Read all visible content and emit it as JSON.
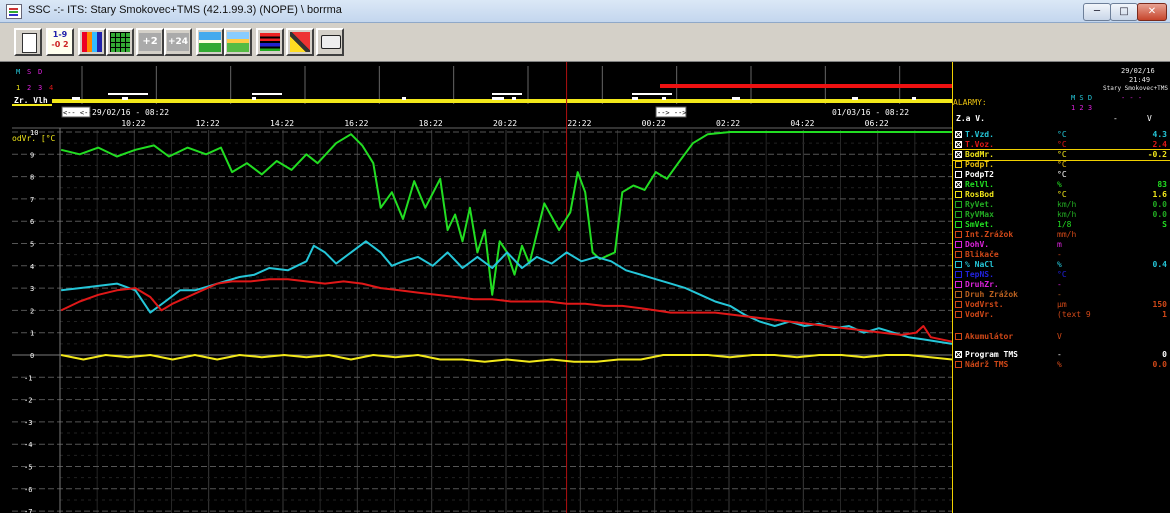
{
  "window": {
    "title": "SSC -:- ITS: Stary Smokovec+TMS (42.1.99.3) (NOPE) \\ borrma",
    "min_glyph": "─",
    "max_glyph": "□",
    "close_glyph": "✕"
  },
  "toolbar": {
    "buttons": [
      {
        "name": "new-page-icon",
        "label": ""
      },
      {
        "name": "values-icon",
        "label": "1-9\n-0 2"
      },
      {
        "name": "colors-icon",
        "label": ""
      },
      {
        "name": "grid-icon",
        "label": ""
      },
      {
        "name": "plus2-icon",
        "label": "+2"
      },
      {
        "name": "plus24-icon",
        "label": "+24"
      },
      {
        "name": "landscape-icon",
        "label": ""
      },
      {
        "name": "landscape2-icon",
        "label": ""
      },
      {
        "name": "bars-icon",
        "label": ""
      },
      {
        "name": "tools-icon",
        "label": ""
      },
      {
        "name": "print-icon",
        "label": ""
      }
    ]
  },
  "top_strip": {
    "msd_letters": [
      "M",
      "S",
      "D"
    ],
    "digits": [
      "1",
      "2",
      "3",
      "4"
    ],
    "row_label": "Zr. Vlh",
    "nav_left": "<-- <--",
    "nav_right": "--> -->",
    "start_time": "29/02/16 - 08:22",
    "end_time": "01/03/16 - 08:22"
  },
  "chart_data": {
    "type": "line",
    "ylabel": "[°C",
    "ylabel_prefix": "odVr.",
    "ylim": [
      -7,
      10
    ],
    "yticks": [
      10,
      9,
      8,
      7,
      6,
      5,
      4,
      3,
      2,
      1,
      0,
      -1,
      -2,
      -3,
      -4,
      -5,
      -6,
      -7
    ],
    "xlim": [
      8.37,
      32.37
    ],
    "xtick_hours": [
      10.37,
      12.37,
      14.37,
      16.37,
      18.37,
      20.37,
      22.37,
      24.37,
      26.37,
      28.37,
      30.37
    ],
    "xtick_labels": [
      "10:22",
      "12:22",
      "14:22",
      "16:22",
      "18:22",
      "20:22",
      "22:22",
      "00:22",
      "02:22",
      "04:22",
      "06:22"
    ],
    "cursor_x": 22.0,
    "grid": true,
    "series": [
      {
        "color": "#22dd22",
        "points": [
          [
            8.4,
            9.2
          ],
          [
            8.9,
            9.0
          ],
          [
            9.4,
            9.3
          ],
          [
            9.9,
            8.9
          ],
          [
            10.4,
            9.2
          ],
          [
            10.9,
            9.4
          ],
          [
            11.3,
            8.9
          ],
          [
            11.8,
            9.3
          ],
          [
            12.3,
            9.0
          ],
          [
            12.7,
            9.3
          ],
          [
            13.0,
            8.2
          ],
          [
            13.4,
            8.6
          ],
          [
            13.8,
            8.1
          ],
          [
            14.2,
            8.7
          ],
          [
            14.6,
            8.3
          ],
          [
            15.0,
            9.0
          ],
          [
            15.3,
            8.6
          ],
          [
            15.8,
            9.5
          ],
          [
            16.2,
            9.9
          ],
          [
            16.5,
            9.4
          ],
          [
            16.8,
            8.6
          ],
          [
            17.0,
            6.6
          ],
          [
            17.3,
            7.3
          ],
          [
            17.6,
            6.1
          ],
          [
            17.9,
            7.8
          ],
          [
            18.2,
            6.6
          ],
          [
            18.6,
            7.9
          ],
          [
            18.8,
            5.6
          ],
          [
            19.0,
            6.3
          ],
          [
            19.2,
            5.1
          ],
          [
            19.4,
            6.6
          ],
          [
            19.6,
            4.6
          ],
          [
            19.8,
            5.6
          ],
          [
            20.0,
            2.7
          ],
          [
            20.2,
            5.1
          ],
          [
            20.4,
            4.6
          ],
          [
            20.6,
            3.6
          ],
          [
            20.8,
            4.9
          ],
          [
            21.0,
            4.1
          ],
          [
            21.4,
            6.8
          ],
          [
            21.8,
            5.6
          ],
          [
            22.1,
            6.4
          ],
          [
            22.3,
            8.2
          ],
          [
            22.5,
            7.3
          ],
          [
            22.7,
            4.6
          ],
          [
            22.9,
            4.3
          ],
          [
            23.3,
            4.6
          ],
          [
            23.5,
            7.3
          ],
          [
            23.8,
            7.6
          ],
          [
            24.1,
            7.4
          ],
          [
            24.4,
            8.2
          ],
          [
            24.7,
            7.9
          ],
          [
            25.0,
            8.6
          ],
          [
            25.4,
            9.5
          ],
          [
            25.8,
            9.9
          ],
          [
            26.4,
            10.0
          ],
          [
            32.37,
            10.0
          ]
        ]
      },
      {
        "color": "#25c6d8",
        "points": [
          [
            8.4,
            2.9
          ],
          [
            8.9,
            3.0
          ],
          [
            9.4,
            3.1
          ],
          [
            9.9,
            3.2
          ],
          [
            10.4,
            2.9
          ],
          [
            10.8,
            1.9
          ],
          [
            11.2,
            2.4
          ],
          [
            11.6,
            2.9
          ],
          [
            12.0,
            2.9
          ],
          [
            12.4,
            3.1
          ],
          [
            12.8,
            3.3
          ],
          [
            13.2,
            3.5
          ],
          [
            13.6,
            3.6
          ],
          [
            14.0,
            3.9
          ],
          [
            14.5,
            3.8
          ],
          [
            15.0,
            4.2
          ],
          [
            15.2,
            4.9
          ],
          [
            15.5,
            4.6
          ],
          [
            15.8,
            4.1
          ],
          [
            16.2,
            4.6
          ],
          [
            16.6,
            5.1
          ],
          [
            17.0,
            4.6
          ],
          [
            17.3,
            4.0
          ],
          [
            17.6,
            4.2
          ],
          [
            18.0,
            4.4
          ],
          [
            18.4,
            4.0
          ],
          [
            18.8,
            4.6
          ],
          [
            19.2,
            3.9
          ],
          [
            19.6,
            4.4
          ],
          [
            20.0,
            3.9
          ],
          [
            20.4,
            4.6
          ],
          [
            20.8,
            3.9
          ],
          [
            21.2,
            4.4
          ],
          [
            21.6,
            4.1
          ],
          [
            22.0,
            4.6
          ],
          [
            22.4,
            4.2
          ],
          [
            22.8,
            4.4
          ],
          [
            23.2,
            4.2
          ],
          [
            23.6,
            3.8
          ],
          [
            24.0,
            3.6
          ],
          [
            24.4,
            3.4
          ],
          [
            24.8,
            3.2
          ],
          [
            25.2,
            3.0
          ],
          [
            25.6,
            2.7
          ],
          [
            26.0,
            2.4
          ],
          [
            26.4,
            2.2
          ],
          [
            26.8,
            1.8
          ],
          [
            27.2,
            1.5
          ],
          [
            27.6,
            1.3
          ],
          [
            28.0,
            1.5
          ],
          [
            28.4,
            1.3
          ],
          [
            28.8,
            1.4
          ],
          [
            29.2,
            1.2
          ],
          [
            29.6,
            1.3
          ],
          [
            30.0,
            1.0
          ],
          [
            30.4,
            1.2
          ],
          [
            30.8,
            1.0
          ],
          [
            31.2,
            0.8
          ],
          [
            31.6,
            0.7
          ],
          [
            32.37,
            0.5
          ]
        ]
      },
      {
        "color": "#e01818",
        "points": [
          [
            8.4,
            2.0
          ],
          [
            8.9,
            2.4
          ],
          [
            9.4,
            2.7
          ],
          [
            9.9,
            2.9
          ],
          [
            10.4,
            3.0
          ],
          [
            10.8,
            2.6
          ],
          [
            11.1,
            2.0
          ],
          [
            11.4,
            2.3
          ],
          [
            11.8,
            2.6
          ],
          [
            12.2,
            2.9
          ],
          [
            12.6,
            3.2
          ],
          [
            13.0,
            3.3
          ],
          [
            13.5,
            3.3
          ],
          [
            14.0,
            3.4
          ],
          [
            14.5,
            3.4
          ],
          [
            15.0,
            3.3
          ],
          [
            15.5,
            3.2
          ],
          [
            16.0,
            3.3
          ],
          [
            16.5,
            3.2
          ],
          [
            17.0,
            3.0
          ],
          [
            17.5,
            2.9
          ],
          [
            18.0,
            2.8
          ],
          [
            18.5,
            2.7
          ],
          [
            19.0,
            2.6
          ],
          [
            19.5,
            2.5
          ],
          [
            20.0,
            2.5
          ],
          [
            20.5,
            2.4
          ],
          [
            21.0,
            2.4
          ],
          [
            21.5,
            2.4
          ],
          [
            22.0,
            2.3
          ],
          [
            22.5,
            2.3
          ],
          [
            23.0,
            2.2
          ],
          [
            23.5,
            2.2
          ],
          [
            24.0,
            2.1
          ],
          [
            24.4,
            2.0
          ],
          [
            24.8,
            1.9
          ],
          [
            25.2,
            1.9
          ],
          [
            25.6,
            1.9
          ],
          [
            26.0,
            1.9
          ],
          [
            26.5,
            1.8
          ],
          [
            27.0,
            1.7
          ],
          [
            27.5,
            1.6
          ],
          [
            28.0,
            1.5
          ],
          [
            28.5,
            1.4
          ],
          [
            29.0,
            1.3
          ],
          [
            29.5,
            1.2
          ],
          [
            30.0,
            1.1
          ],
          [
            30.5,
            1.0
          ],
          [
            31.0,
            0.9
          ],
          [
            31.4,
            1.0
          ],
          [
            31.6,
            1.3
          ],
          [
            31.8,
            0.8
          ],
          [
            32.37,
            0.6
          ]
        ]
      },
      {
        "color": "#f2e81a",
        "points": [
          [
            8.4,
            0.0
          ],
          [
            9.0,
            -0.2
          ],
          [
            9.6,
            0.0
          ],
          [
            10.2,
            -0.1
          ],
          [
            10.8,
            0.0
          ],
          [
            11.4,
            -0.2
          ],
          [
            12.0,
            0.0
          ],
          [
            12.6,
            -0.2
          ],
          [
            13.2,
            0.0
          ],
          [
            13.8,
            -0.1
          ],
          [
            14.4,
            0.0
          ],
          [
            15.0,
            -0.1
          ],
          [
            15.6,
            0.0
          ],
          [
            16.2,
            -0.2
          ],
          [
            16.8,
            0.0
          ],
          [
            17.4,
            -0.1
          ],
          [
            18.0,
            0.0
          ],
          [
            18.6,
            -0.2
          ],
          [
            19.2,
            -0.2
          ],
          [
            19.8,
            -0.3
          ],
          [
            20.4,
            -0.2
          ],
          [
            21.0,
            -0.3
          ],
          [
            21.6,
            -0.2
          ],
          [
            22.2,
            -0.3
          ],
          [
            22.8,
            -0.3
          ],
          [
            23.4,
            -0.2
          ],
          [
            24.0,
            -0.2
          ],
          [
            24.6,
            0.0
          ],
          [
            25.2,
            0.0
          ],
          [
            25.8,
            0.0
          ],
          [
            26.4,
            -0.1
          ],
          [
            27.0,
            0.0
          ],
          [
            27.6,
            0.0
          ],
          [
            28.2,
            -0.1
          ],
          [
            28.8,
            0.0
          ],
          [
            29.4,
            0.0
          ],
          [
            30.0,
            -0.1
          ],
          [
            30.6,
            0.0
          ],
          [
            31.2,
            0.0
          ],
          [
            32.37,
            -0.2
          ]
        ]
      }
    ]
  },
  "panel": {
    "date": "29/02/16",
    "time": "21:49",
    "station": "Stary Smokovec+TMS",
    "alarmy_label": "ALARMY:",
    "msd": "M S D",
    "nums": "1 2 3",
    "dashes": "- - -",
    "za_v_label": "Z.a V.",
    "za_v_dash": "-",
    "za_v_unit": "V",
    "rows": [
      {
        "label": "T.Vzd.",
        "unit": "°C",
        "value": "4.3",
        "color": "#25c6d8",
        "checked": true
      },
      {
        "label": "T.Voz.",
        "unit": "°C",
        "value": "2.4",
        "color": "#e01818",
        "checked": true
      },
      {
        "label": "BodMr.",
        "unit": "°C",
        "value": "-0.2",
        "color": "#f2e81a",
        "checked": true
      },
      {
        "label": "PodpT.",
        "unit": "°C",
        "value": "",
        "color": "#e8c010",
        "checked": false
      },
      {
        "label": "PodpT2",
        "unit": "°C",
        "value": "",
        "color": "#ffffff",
        "checked": false
      },
      {
        "label": "RelVl.",
        "unit": "%",
        "value": "83",
        "color": "#22dd22",
        "checked": true
      },
      {
        "label": "RosBod",
        "unit": "°C",
        "value": "1.6",
        "color": "#f2e81a",
        "checked": false
      },
      {
        "label": "RyVet.",
        "unit": "km/h",
        "value": "0.0",
        "color": "#22aa22",
        "checked": false
      },
      {
        "label": "RyVMax",
        "unit": "km/h",
        "value": "0.0",
        "color": "#22aa22",
        "checked": false
      },
      {
        "label": "SmVet.",
        "unit": "1/8",
        "value": "S",
        "color": "#22dd22",
        "checked": false
      },
      {
        "label": "Int.Zrážok",
        "unit": "mm/h",
        "value": "",
        "color": "#d04818",
        "checked": false
      },
      {
        "label": "DohV.",
        "unit": "m",
        "value": "",
        "color": "#dd22dd",
        "checked": false
      },
      {
        "label": "Blikače",
        "unit": "-",
        "value": "",
        "color": "#d04818",
        "checked": false
      },
      {
        "label": "% NaCl",
        "unit": "%",
        "value": "0.4",
        "color": "#25c6d8",
        "checked": false
      },
      {
        "label": "TepNS.",
        "unit": "°C",
        "value": "",
        "color": "#2222dd",
        "checked": false
      },
      {
        "label": "DruhZr.",
        "unit": "-",
        "value": "",
        "color": "#dd22dd",
        "checked": false
      },
      {
        "label": "Druh Zrážok",
        "unit": "-",
        "value": "",
        "color": "#b86020",
        "checked": false
      },
      {
        "label": "VodVrst.",
        "unit": "µm",
        "value": "150",
        "color": "#d04818",
        "checked": false
      },
      {
        "label": "VodVr.",
        "unit": "(text 9",
        "value": "1",
        "color": "#d04818",
        "checked": false
      },
      {
        "label": "Akumulátor",
        "unit": "V",
        "value": "",
        "color": "#d04818",
        "checked": false
      },
      {
        "label": "Program TMS",
        "unit": "-",
        "value": "0",
        "color": "#ffffff",
        "checked": true
      },
      {
        "label": "Nádrž TMS",
        "unit": "%",
        "value": "0.0",
        "color": "#d04818",
        "checked": false
      }
    ]
  }
}
